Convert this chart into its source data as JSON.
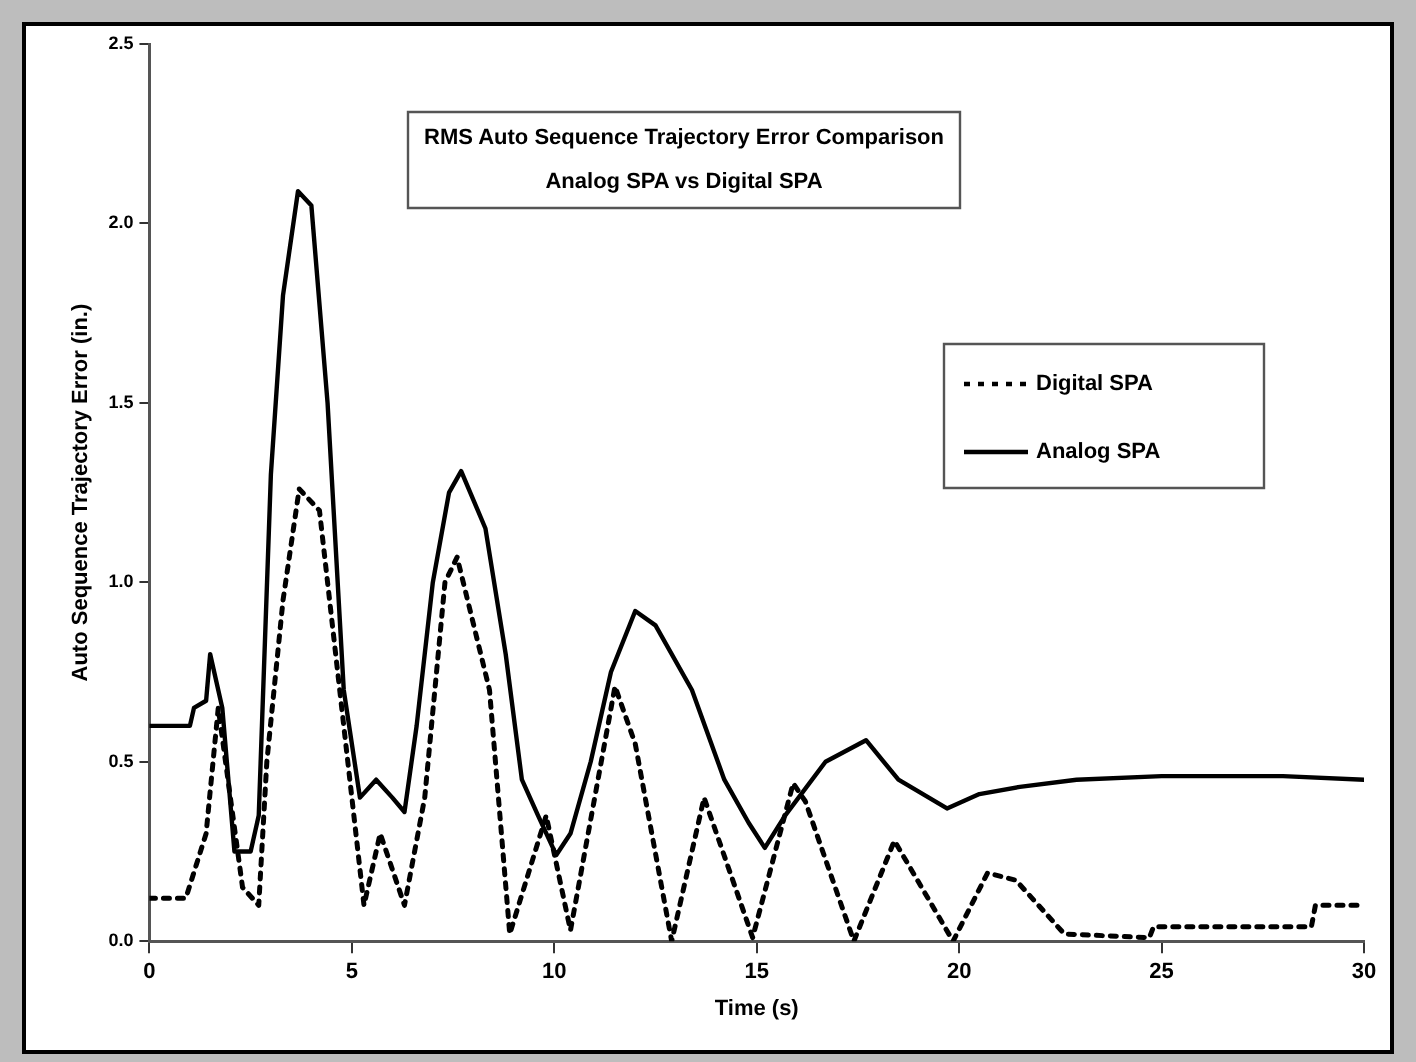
{
  "chart_data": {
    "type": "line",
    "title": "RMS Auto Sequence Trajectory Error Comparison",
    "subtitle": "Analog SPA vs Digital SPA",
    "xlabel": "Time (s)",
    "ylabel": "Auto Sequence Trajectory Error (in.)",
    "xlim": [
      0,
      30
    ],
    "xticks": [
      0,
      5,
      10,
      15,
      20,
      25,
      30
    ],
    "ylim": [
      0,
      2.5
    ],
    "yticks": [
      {
        "value": 0,
        "label": "0.0"
      },
      0.5,
      {
        "value": 1,
        "label": "1.0"
      },
      1.5,
      {
        "value": 2,
        "label": "2.0"
      },
      2.5
    ],
    "grid": false,
    "legend": "right",
    "marker": "none",
    "series": [
      {
        "name": "Digital SPA",
        "color": "#000000",
        "line_style": "dotted",
        "x": [
          0,
          0.9,
          1.4,
          1.7,
          2.0,
          2.3,
          2.7,
          2.9,
          3.3,
          3.7,
          4.2,
          4.5,
          5.0,
          5.3,
          5.7,
          6.0,
          6.3,
          6.8,
          7.3,
          7.6,
          8.4,
          8.9,
          9.8,
          10.4,
          11.5,
          12.0,
          12.9,
          13.7,
          14.9,
          15.9,
          16.2,
          17.4,
          18.4,
          19.85,
          20.7,
          21.4,
          22.6,
          24.7,
          24.8,
          28.7,
          28.8,
          30
        ],
        "values": [
          0.12,
          0.12,
          0.3,
          0.65,
          0.4,
          0.15,
          0.1,
          0.5,
          0.95,
          1.26,
          1.2,
          0.9,
          0.4,
          0.1,
          0.3,
          0.2,
          0.1,
          0.4,
          1.0,
          1.07,
          0.7,
          0.02,
          0.35,
          0.03,
          0.71,
          0.55,
          0.0,
          0.4,
          0.01,
          0.44,
          0.39,
          0.0,
          0.28,
          0.0,
          0.19,
          0.17,
          0.02,
          0.01,
          0.04,
          0.04,
          0.1,
          0.1
        ]
      },
      {
        "name": "Analog SPA",
        "color": "#000000",
        "line_style": "solid",
        "x": [
          0,
          1.0,
          1.1,
          1.4,
          1.5,
          1.8,
          2.1,
          2.5,
          2.7,
          3.0,
          3.3,
          3.67,
          4.0,
          4.4,
          4.8,
          5.2,
          5.6,
          6.0,
          6.3,
          6.6,
          7.0,
          7.4,
          7.7,
          8.3,
          8.8,
          9.2,
          9.6,
          10.05,
          10.4,
          10.9,
          11.4,
          12.0,
          12.5,
          13.4,
          14.2,
          14.8,
          15.2,
          15.7,
          16.7,
          17.7,
          18.5,
          19.7,
          20.5,
          21.5,
          22.9,
          25,
          28,
          30
        ],
        "values": [
          0.6,
          0.6,
          0.65,
          0.67,
          0.8,
          0.65,
          0.25,
          0.25,
          0.35,
          1.3,
          1.8,
          2.09,
          2.05,
          1.5,
          0.7,
          0.4,
          0.45,
          0.4,
          0.36,
          0.6,
          1.0,
          1.25,
          1.31,
          1.15,
          0.8,
          0.45,
          0.35,
          0.24,
          0.3,
          0.5,
          0.75,
          0.92,
          0.88,
          0.7,
          0.45,
          0.33,
          0.26,
          0.35,
          0.5,
          0.56,
          0.45,
          0.37,
          0.41,
          0.43,
          0.45,
          0.46,
          0.46,
          0.45
        ]
      }
    ]
  }
}
